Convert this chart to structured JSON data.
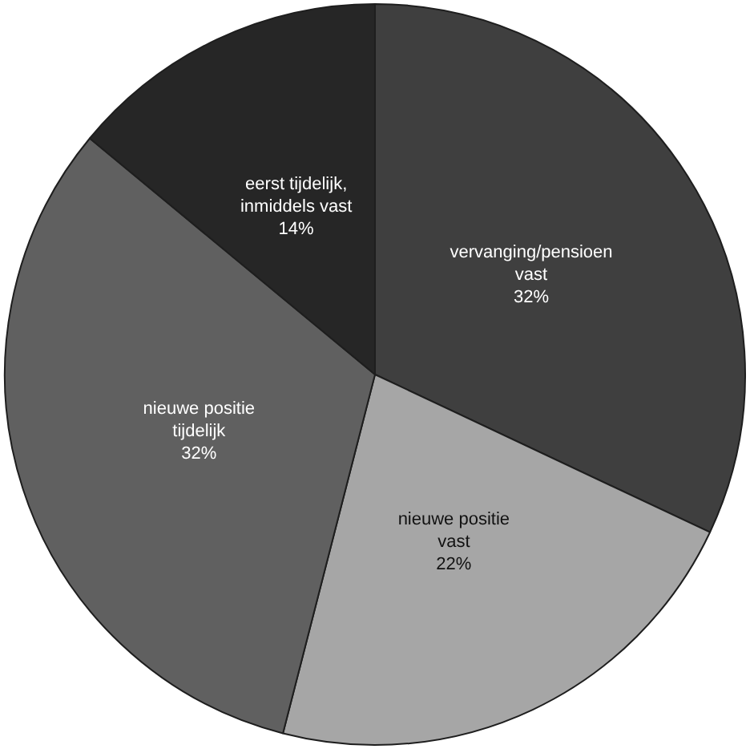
{
  "chart_data": {
    "type": "pie",
    "categories": [
      "vervanging/pensioen vast",
      "nieuwe positie vast",
      "nieuwe positie tijdelijk",
      "eerst tijdelijk, inmiddels vast"
    ],
    "values": [
      32,
      22,
      32,
      14
    ],
    "value_labels": [
      "32%",
      "22%",
      "32%",
      "14%"
    ],
    "colors": [
      "#3f3f3f",
      "#a6a6a6",
      "#606060",
      "#262626"
    ],
    "legend": false
  }
}
